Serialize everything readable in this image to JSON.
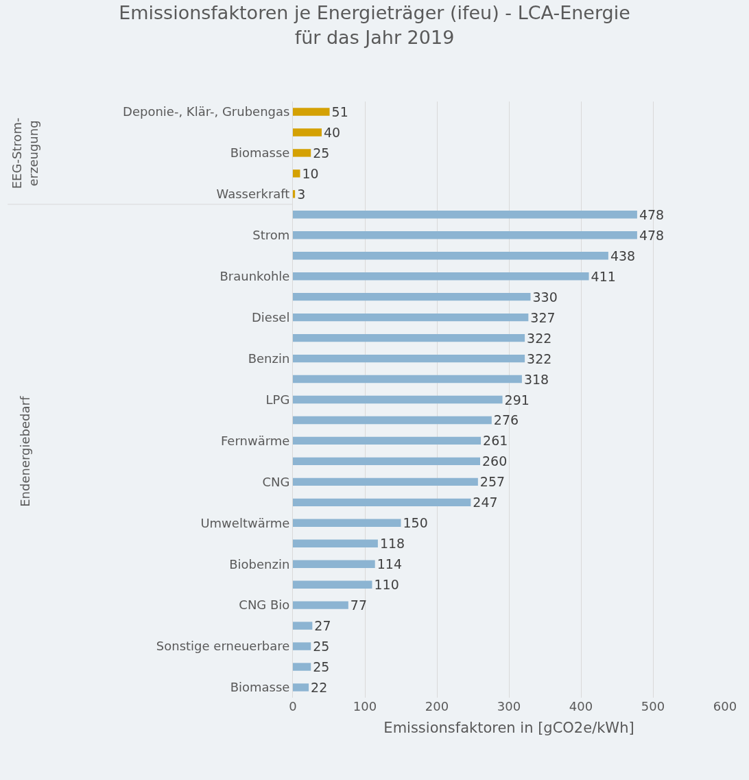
{
  "chart_data": {
    "type": "bar",
    "orientation": "horizontal",
    "title": "Emissionsfaktoren je Energieträger (ifeu) - LCA-Energie für das Jahr 2019",
    "xlabel": "Emissionsfaktoren in [gCO2e/kWh]",
    "categories": [
      "Deponie-, Klär-, Grubengas",
      null,
      "Biomasse",
      null,
      "Wasserkraft",
      null,
      "Strom",
      null,
      "Braunkohle",
      null,
      "Diesel",
      null,
      "Benzin",
      null,
      "LPG",
      null,
      "Fernwärme",
      null,
      "CNG",
      null,
      "Umweltwärme",
      null,
      "Biobenzin",
      null,
      "CNG Bio",
      null,
      "Sonstige erneuerbare",
      null,
      "Biomasse"
    ],
    "values": [
      51,
      40,
      25,
      10,
      3,
      478,
      478,
      438,
      411,
      330,
      327,
      322,
      322,
      318,
      291,
      276,
      261,
      260,
      257,
      247,
      150,
      118,
      114,
      110,
      77,
      27,
      25,
      25,
      22
    ],
    "colors": [
      "#d4a104",
      "#d4a104",
      "#d4a104",
      "#d4a104",
      "#d4a104",
      "#8cb4d2",
      "#8cb4d2",
      "#8cb4d2",
      "#8cb4d2",
      "#8cb4d2",
      "#8cb4d2",
      "#8cb4d2",
      "#8cb4d2",
      "#8cb4d2",
      "#8cb4d2",
      "#8cb4d2",
      "#8cb4d2",
      "#8cb4d2",
      "#8cb4d2",
      "#8cb4d2",
      "#8cb4d2",
      "#8cb4d2",
      "#8cb4d2",
      "#8cb4d2",
      "#8cb4d2",
      "#8cb4d2",
      "#8cb4d2",
      "#8cb4d2",
      "#8cb4d2"
    ],
    "xlim": [
      0,
      600
    ],
    "xticks": [
      0,
      100,
      200,
      300,
      400,
      500,
      600
    ],
    "grid": "x",
    "data_labels": true,
    "annotations": [
      "EEG-Strom-erzeugung",
      "Endenergiebedarf"
    ]
  }
}
